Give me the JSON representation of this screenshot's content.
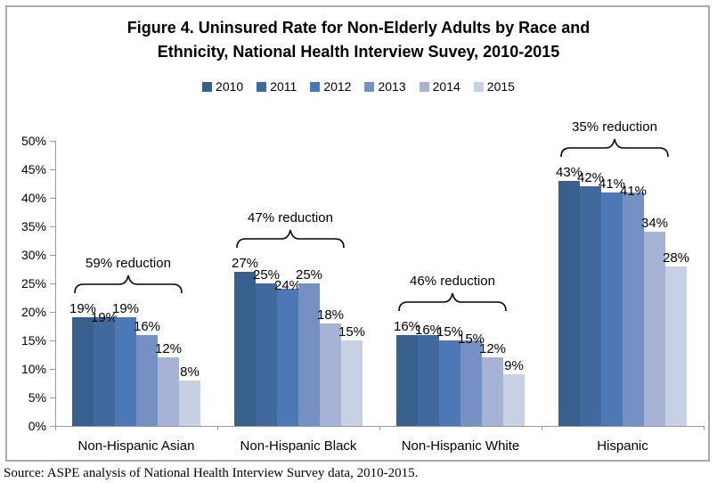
{
  "figure": {
    "title_line1": "Figure 4. Uninsured Rate for Non-Elderly Adults by Race and",
    "title_line2": "Ethnicity, National Health Interview Suvey, 2010-2015",
    "source": "Source: ASPE analysis of National Health Interview Survey data, 2010-2015."
  },
  "chart_data": {
    "type": "bar",
    "title": "Figure 4. Uninsured Rate for Non-Elderly Adults by Race and Ethnicity, National Health Interview Suvey, 2010-2015",
    "categories": [
      "Non-Hispanic Asian",
      "Non-Hispanic Black",
      "Non-Hispanic White",
      "Hispanic"
    ],
    "series": [
      {
        "name": "2010",
        "color": "#38608F",
        "values": [
          19,
          27,
          16,
          43
        ]
      },
      {
        "name": "2011",
        "color": "#42699E",
        "values": [
          19,
          25,
          16,
          42
        ]
      },
      {
        "name": "2012",
        "color": "#4C79B5",
        "values": [
          19,
          24,
          15,
          41
        ]
      },
      {
        "name": "2013",
        "color": "#7690C4",
        "values": [
          16,
          25,
          15,
          41
        ]
      },
      {
        "name": "2014",
        "color": "#A6B3D5",
        "values": [
          12,
          18,
          12,
          34
        ]
      },
      {
        "name": "2015",
        "color": "#C8D0E4",
        "values": [
          8,
          15,
          9,
          28
        ]
      }
    ],
    "data_labels": [
      [
        "19%",
        "19%",
        "19%",
        "16%",
        "12%",
        "8%"
      ],
      [
        "27%",
        "25%",
        "24%",
        "25%",
        "18%",
        "15%"
      ],
      [
        "16%",
        "16%",
        "15%",
        "15%",
        "12%",
        "9%"
      ],
      [
        "43%",
        "42%",
        "41%",
        "41%",
        "34%",
        "28%"
      ]
    ],
    "annotations": [
      {
        "category": "Non-Hispanic Asian",
        "label": "59% reduction"
      },
      {
        "category": "Non-Hispanic Black",
        "label": "47% reduction"
      },
      {
        "category": "Non-Hispanic White",
        "label": "46% reduction"
      },
      {
        "category": "Hispanic",
        "label": "35% reduction"
      }
    ],
    "yticks": [
      "0%",
      "5%",
      "10%",
      "15%",
      "20%",
      "25%",
      "30%",
      "35%",
      "40%",
      "45%",
      "50%"
    ],
    "ylim": [
      0,
      50
    ],
    "value_suffix": "%",
    "legend_position": "top-center",
    "grid": false,
    "axis_color": "#9b9b9b",
    "brace_color": "#000000"
  }
}
